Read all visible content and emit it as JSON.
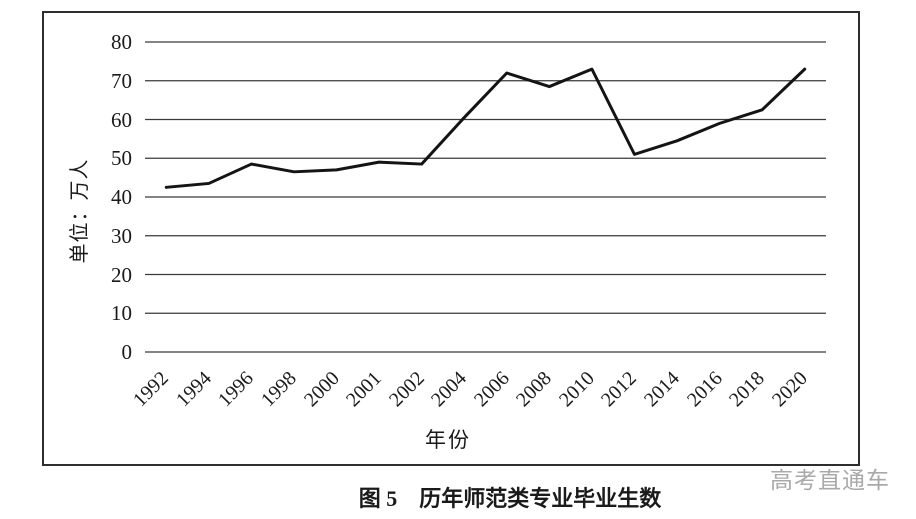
{
  "figure": {
    "caption": "图 5　历年师范类专业毕业生数",
    "watermark": "高考直通车"
  },
  "chart_data": {
    "type": "line",
    "title": "图 5 历年师范类专业毕业生数",
    "categories": [
      "1992",
      "1994",
      "1996",
      "1998",
      "2000",
      "2001",
      "2002",
      "2004",
      "2006",
      "2008",
      "2010",
      "2012",
      "2014",
      "2016",
      "2018",
      "2020"
    ],
    "values": [
      42.5,
      43.5,
      48.5,
      46.5,
      47,
      49,
      48.5,
      60.5,
      72,
      68.5,
      73,
      51,
      54.5,
      59,
      62.5,
      73
    ],
    "xlabel": "年份",
    "ylabel": "单位：万人",
    "ylim": [
      0,
      80
    ],
    "ytick_step": 10,
    "yticks": [
      0,
      10,
      20,
      30,
      40,
      50,
      60,
      70,
      80
    ],
    "grid": true,
    "legend": "none",
    "line_color": "#141414",
    "grid_color": "#3a3a3a",
    "text_color": "#1a1a1a"
  }
}
